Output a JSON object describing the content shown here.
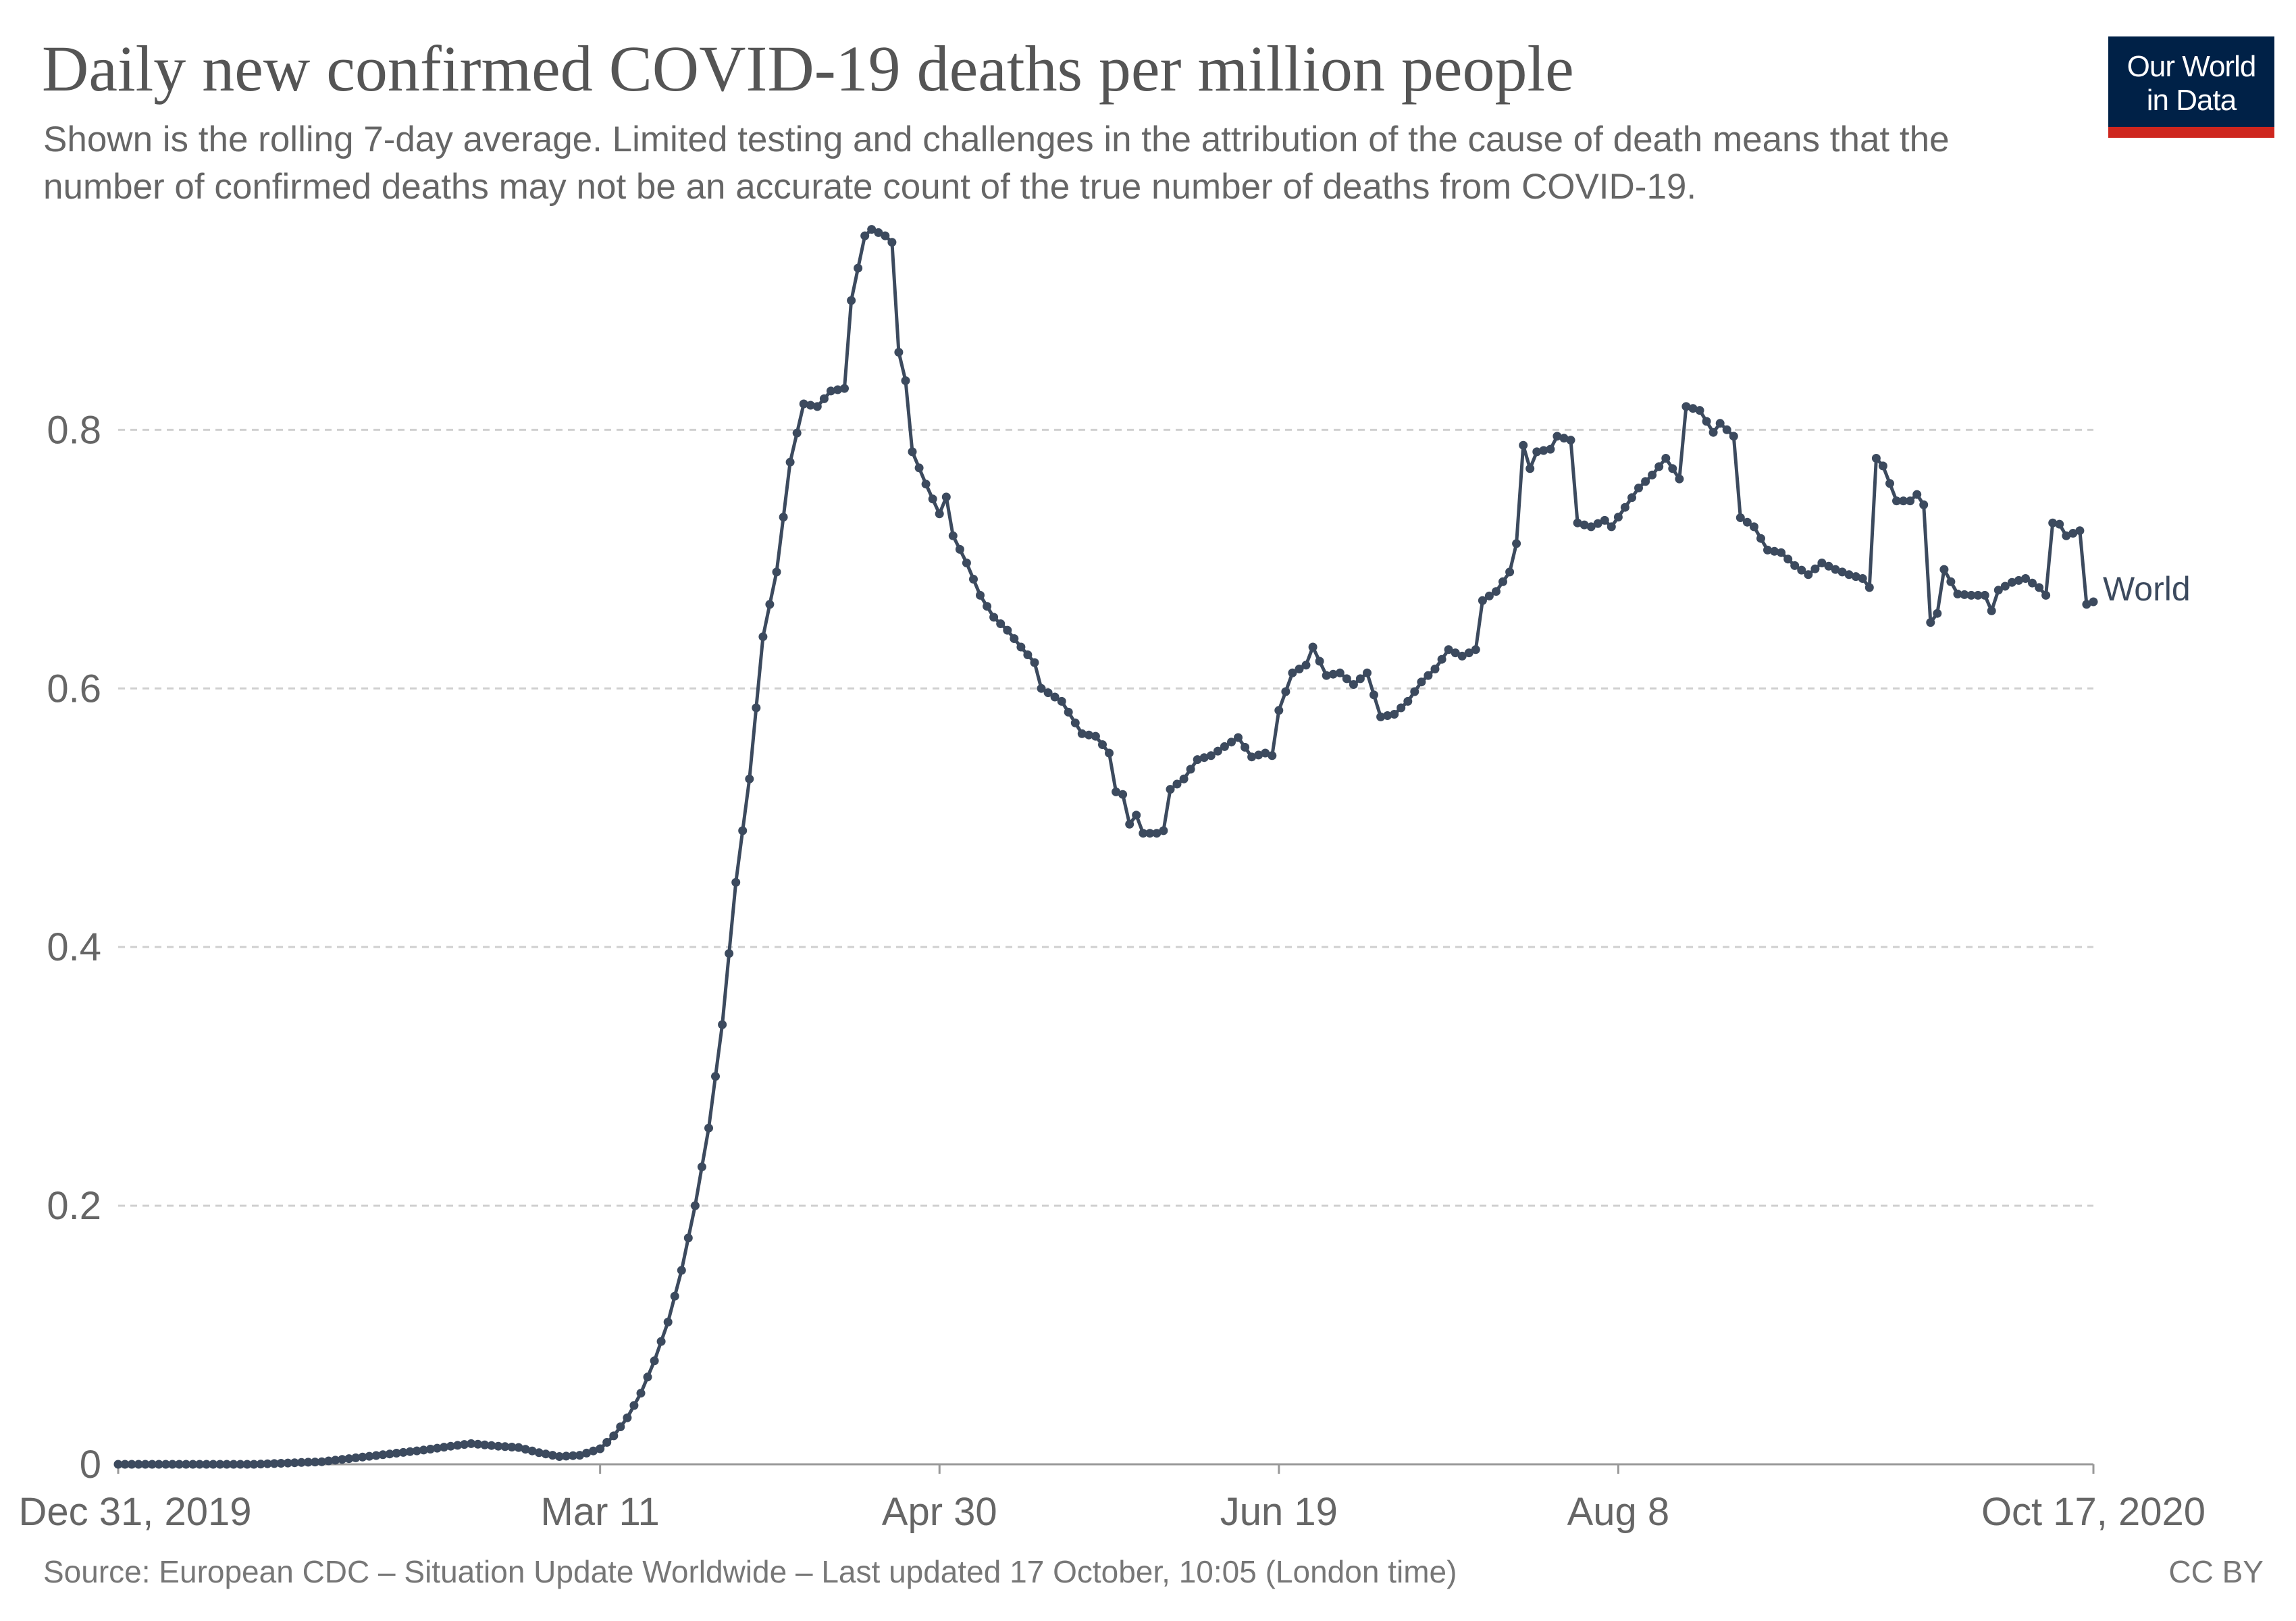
{
  "header": {
    "title": "Daily new confirmed COVID-19 deaths per million people",
    "subtitle": "Shown is the rolling 7-day average. Limited testing and challenges in the attribution of the cause of death means that the number of confirmed deaths may not be an accurate count of the true number of deaths from COVID-19."
  },
  "logo": {
    "line1": "Our World",
    "line2": "in Data",
    "bg_color": "#002147",
    "bar_color": "#ce261e"
  },
  "footer": {
    "source": "Source: European CDC – Situation Update Worldwide – Last updated 17 October, 10:05 (London time)",
    "license": "CC BY"
  },
  "chart_data": {
    "type": "line",
    "title": "Daily new confirmed COVID-19 deaths per million people",
    "xlabel": "",
    "ylabel": "",
    "x_range": [
      "2019-12-31",
      "2020-10-17"
    ],
    "ylim": [
      0,
      0.96
    ],
    "y_ticks": [
      0,
      0.2,
      0.4,
      0.6,
      0.8
    ],
    "y_tick_labels": [
      "0",
      "0.2",
      "0.4",
      "0.6",
      "0.8"
    ],
    "x_ticks": [
      "2019-12-31",
      "2020-03-11",
      "2020-04-30",
      "2020-06-19",
      "2020-08-08",
      "2020-10-17"
    ],
    "x_tick_labels": [
      "Dec 31, 2019",
      "Mar 11",
      "Apr 30",
      "Jun 19",
      "Aug 8",
      "Oct 17, 2020"
    ],
    "grid": "horizontal-dashed",
    "series": [
      {
        "name": "World",
        "color": "#3c4a5e",
        "markers": true,
        "points": [
          [
            "2019-12-31",
            0
          ],
          [
            "2020-01-10",
            0
          ],
          [
            "2020-01-20",
            0
          ],
          [
            "2020-01-25",
            0.001
          ],
          [
            "2020-01-30",
            0.002
          ],
          [
            "2020-02-04",
            0.005
          ],
          [
            "2020-02-09",
            0.008
          ],
          [
            "2020-02-14",
            0.011
          ],
          [
            "2020-02-18",
            0.014
          ],
          [
            "2020-02-21",
            0.016
          ],
          [
            "2020-02-25",
            0.014
          ],
          [
            "2020-02-28",
            0.013
          ],
          [
            "2020-03-02",
            0.009
          ],
          [
            "2020-03-05",
            0.006
          ],
          [
            "2020-03-08",
            0.007
          ],
          [
            "2020-03-11",
            0.012
          ],
          [
            "2020-03-13",
            0.022
          ],
          [
            "2020-03-15",
            0.036
          ],
          [
            "2020-03-17",
            0.055
          ],
          [
            "2020-03-19",
            0.08
          ],
          [
            "2020-03-21",
            0.11
          ],
          [
            "2020-03-23",
            0.15
          ],
          [
            "2020-03-25",
            0.2
          ],
          [
            "2020-03-27",
            0.26
          ],
          [
            "2020-03-29",
            0.34
          ],
          [
            "2020-03-31",
            0.45
          ],
          [
            "2020-04-02",
            0.53
          ],
          [
            "2020-04-04",
            0.64
          ],
          [
            "2020-04-06",
            0.69
          ],
          [
            "2020-04-08",
            0.775
          ],
          [
            "2020-04-10",
            0.82
          ],
          [
            "2020-04-12",
            0.818
          ],
          [
            "2020-04-14",
            0.83
          ],
          [
            "2020-04-16",
            0.832
          ],
          [
            "2020-04-17",
            0.9
          ],
          [
            "2020-04-18",
            0.925
          ],
          [
            "2020-04-19",
            0.95
          ],
          [
            "2020-04-20",
            0.955
          ],
          [
            "2020-04-22",
            0.95
          ],
          [
            "2020-04-23",
            0.945
          ],
          [
            "2020-04-24",
            0.86
          ],
          [
            "2020-04-25",
            0.838
          ],
          [
            "2020-04-26",
            0.783
          ],
          [
            "2020-04-28",
            0.758
          ],
          [
            "2020-04-30",
            0.735
          ],
          [
            "2020-05-01",
            0.748
          ],
          [
            "2020-05-02",
            0.718
          ],
          [
            "2020-05-04",
            0.697
          ],
          [
            "2020-05-06",
            0.672
          ],
          [
            "2020-05-08",
            0.655
          ],
          [
            "2020-05-10",
            0.645
          ],
          [
            "2020-05-12",
            0.632
          ],
          [
            "2020-05-14",
            0.62
          ],
          [
            "2020-05-15",
            0.6
          ],
          [
            "2020-05-18",
            0.59
          ],
          [
            "2020-05-21",
            0.565
          ],
          [
            "2020-05-23",
            0.563
          ],
          [
            "2020-05-25",
            0.55
          ],
          [
            "2020-05-26",
            0.52
          ],
          [
            "2020-05-27",
            0.518
          ],
          [
            "2020-05-28",
            0.495
          ],
          [
            "2020-05-29",
            0.502
          ],
          [
            "2020-05-30",
            0.488
          ],
          [
            "2020-06-01",
            0.488
          ],
          [
            "2020-06-02",
            0.49
          ],
          [
            "2020-06-03",
            0.522
          ],
          [
            "2020-06-05",
            0.53
          ],
          [
            "2020-06-07",
            0.545
          ],
          [
            "2020-06-09",
            0.548
          ],
          [
            "2020-06-11",
            0.555
          ],
          [
            "2020-06-13",
            0.562
          ],
          [
            "2020-06-15",
            0.547
          ],
          [
            "2020-06-17",
            0.55
          ],
          [
            "2020-06-18",
            0.548
          ],
          [
            "2020-06-19",
            0.583
          ],
          [
            "2020-06-21",
            0.612
          ],
          [
            "2020-06-23",
            0.618
          ],
          [
            "2020-06-24",
            0.632
          ],
          [
            "2020-06-26",
            0.61
          ],
          [
            "2020-06-28",
            0.612
          ],
          [
            "2020-06-30",
            0.603
          ],
          [
            "2020-07-02",
            0.612
          ],
          [
            "2020-07-04",
            0.578
          ],
          [
            "2020-07-06",
            0.58
          ],
          [
            "2020-07-08",
            0.59
          ],
          [
            "2020-07-10",
            0.605
          ],
          [
            "2020-07-12",
            0.615
          ],
          [
            "2020-07-14",
            0.63
          ],
          [
            "2020-07-16",
            0.625
          ],
          [
            "2020-07-18",
            0.63
          ],
          [
            "2020-07-19",
            0.668
          ],
          [
            "2020-07-21",
            0.675
          ],
          [
            "2020-07-23",
            0.69
          ],
          [
            "2020-07-24",
            0.712
          ],
          [
            "2020-07-25",
            0.788
          ],
          [
            "2020-07-26",
            0.77
          ],
          [
            "2020-07-27",
            0.783
          ],
          [
            "2020-07-29",
            0.785
          ],
          [
            "2020-07-30",
            0.795
          ],
          [
            "2020-08-01",
            0.792
          ],
          [
            "2020-08-02",
            0.728
          ],
          [
            "2020-08-04",
            0.725
          ],
          [
            "2020-08-06",
            0.73
          ],
          [
            "2020-08-07",
            0.725
          ],
          [
            "2020-08-09",
            0.74
          ],
          [
            "2020-08-11",
            0.755
          ],
          [
            "2020-08-13",
            0.765
          ],
          [
            "2020-08-15",
            0.778
          ],
          [
            "2020-08-17",
            0.762
          ],
          [
            "2020-08-18",
            0.818
          ],
          [
            "2020-08-20",
            0.815
          ],
          [
            "2020-08-22",
            0.798
          ],
          [
            "2020-08-23",
            0.805
          ],
          [
            "2020-08-25",
            0.795
          ],
          [
            "2020-08-26",
            0.732
          ],
          [
            "2020-08-28",
            0.725
          ],
          [
            "2020-08-30",
            0.707
          ],
          [
            "2020-09-01",
            0.705
          ],
          [
            "2020-09-03",
            0.695
          ],
          [
            "2020-09-05",
            0.688
          ],
          [
            "2020-09-07",
            0.697
          ],
          [
            "2020-09-09",
            0.692
          ],
          [
            "2020-09-11",
            0.688
          ],
          [
            "2020-09-13",
            0.685
          ],
          [
            "2020-09-14",
            0.678
          ],
          [
            "2020-09-15",
            0.778
          ],
          [
            "2020-09-16",
            0.772
          ],
          [
            "2020-09-18",
            0.745
          ],
          [
            "2020-09-20",
            0.745
          ],
          [
            "2020-09-21",
            0.75
          ],
          [
            "2020-09-22",
            0.742
          ],
          [
            "2020-09-23",
            0.651
          ],
          [
            "2020-09-24",
            0.658
          ],
          [
            "2020-09-25",
            0.692
          ],
          [
            "2020-09-27",
            0.673
          ],
          [
            "2020-09-29",
            0.672
          ],
          [
            "2020-10-01",
            0.672
          ],
          [
            "2020-10-02",
            0.66
          ],
          [
            "2020-10-03",
            0.676
          ],
          [
            "2020-10-05",
            0.682
          ],
          [
            "2020-10-07",
            0.685
          ],
          [
            "2020-10-09",
            0.678
          ],
          [
            "2020-10-10",
            0.672
          ],
          [
            "2020-10-11",
            0.728
          ],
          [
            "2020-10-12",
            0.727
          ],
          [
            "2020-10-13",
            0.718
          ],
          [
            "2020-10-15",
            0.722
          ],
          [
            "2020-10-16",
            0.665
          ],
          [
            "2020-10-17",
            0.667
          ]
        ]
      }
    ]
  }
}
